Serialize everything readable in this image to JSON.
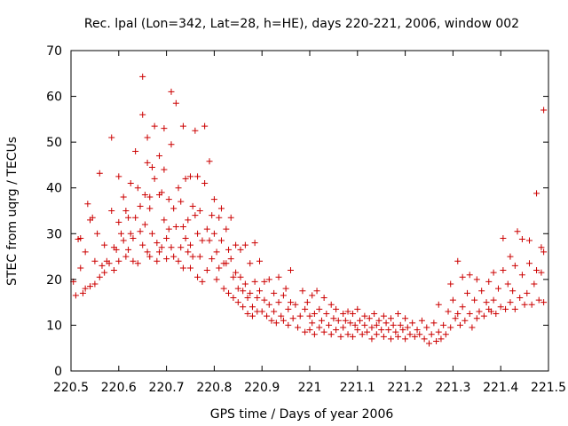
{
  "chart_data": {
    "type": "scatter",
    "title": "Rec. lpal (Lon=342, Lat=28, h=HE), days 220-221, 2006, window 002",
    "xlabel": "GPS time / Days of year 2006",
    "ylabel": "STEC from uqrg / TECUs",
    "xlim": [
      220.5,
      221.5
    ],
    "ylim": [
      0,
      70
    ],
    "xticks": [
      "220.5",
      "220.6",
      "220.7",
      "220.8",
      "220.9",
      "221",
      "221.1",
      "221.2",
      "221.3",
      "221.4",
      "221.5"
    ],
    "yticks": [
      "0",
      "10",
      "20",
      "30",
      "40",
      "50",
      "60",
      "70"
    ],
    "grid": false,
    "marker": "+",
    "color": "#cc0000",
    "points": [
      [
        220.505,
        19.5
      ],
      [
        220.51,
        16.5
      ],
      [
        220.515,
        28.8
      ],
      [
        220.52,
        29.0
      ],
      [
        220.52,
        22.5
      ],
      [
        220.525,
        17.0
      ],
      [
        220.53,
        18.0
      ],
      [
        220.53,
        26.0
      ],
      [
        220.535,
        36.5
      ],
      [
        220.54,
        33.0
      ],
      [
        220.54,
        18.5
      ],
      [
        220.545,
        33.5
      ],
      [
        220.55,
        24.0
      ],
      [
        220.55,
        19.0
      ],
      [
        220.555,
        30.0
      ],
      [
        220.56,
        43.2
      ],
      [
        220.56,
        20.5
      ],
      [
        220.565,
        23.0
      ],
      [
        220.57,
        21.5
      ],
      [
        220.57,
        27.5
      ],
      [
        220.575,
        24.0
      ],
      [
        220.58,
        23.5
      ],
      [
        220.585,
        51.0
      ],
      [
        220.585,
        35.0
      ],
      [
        220.59,
        27.0
      ],
      [
        220.59,
        22.0
      ],
      [
        220.595,
        26.5
      ],
      [
        220.6,
        42.5
      ],
      [
        220.6,
        32.5
      ],
      [
        220.6,
        24.0
      ],
      [
        220.605,
        30.0
      ],
      [
        220.61,
        38.0
      ],
      [
        220.61,
        28.5
      ],
      [
        220.615,
        35.0
      ],
      [
        220.615,
        25.0
      ],
      [
        220.62,
        33.5
      ],
      [
        220.62,
        26.5
      ],
      [
        220.625,
        41.0
      ],
      [
        220.625,
        30.0
      ],
      [
        220.63,
        29.0
      ],
      [
        220.63,
        24.0
      ],
      [
        220.635,
        48.0
      ],
      [
        220.635,
        33.5
      ],
      [
        220.64,
        40.0
      ],
      [
        220.64,
        23.5
      ],
      [
        220.645,
        36.0
      ],
      [
        220.645,
        30.5
      ],
      [
        220.65,
        64.3
      ],
      [
        220.65,
        56.0
      ],
      [
        220.65,
        27.5
      ],
      [
        220.655,
        38.5
      ],
      [
        220.655,
        32.0
      ],
      [
        220.66,
        51.0
      ],
      [
        220.66,
        45.5
      ],
      [
        220.66,
        26.0
      ],
      [
        220.665,
        38.0
      ],
      [
        220.665,
        35.5
      ],
      [
        220.665,
        25.0
      ],
      [
        220.67,
        44.5
      ],
      [
        220.67,
        30.0
      ],
      [
        220.675,
        53.5
      ],
      [
        220.675,
        42.0
      ],
      [
        220.68,
        28.0
      ],
      [
        220.68,
        24.0
      ],
      [
        220.685,
        38.5
      ],
      [
        220.685,
        47.0
      ],
      [
        220.685,
        26.0
      ],
      [
        220.69,
        39.0
      ],
      [
        220.69,
        27.0
      ],
      [
        220.695,
        53.0
      ],
      [
        220.695,
        44.0
      ],
      [
        220.695,
        33.0
      ],
      [
        220.7,
        29.0
      ],
      [
        220.7,
        24.5
      ],
      [
        220.705,
        37.5
      ],
      [
        220.705,
        31.0
      ],
      [
        220.71,
        61.0
      ],
      [
        220.71,
        49.5
      ],
      [
        220.71,
        27.0
      ],
      [
        220.715,
        35.5
      ],
      [
        220.715,
        25.0
      ],
      [
        220.72,
        58.5
      ],
      [
        220.72,
        31.5
      ],
      [
        220.725,
        40.0
      ],
      [
        220.725,
        24.0
      ],
      [
        220.73,
        37.0
      ],
      [
        220.73,
        27.0
      ],
      [
        220.735,
        53.5
      ],
      [
        220.735,
        31.5
      ],
      [
        220.735,
        22.5
      ],
      [
        220.74,
        42.0
      ],
      [
        220.74,
        29.0
      ],
      [
        220.745,
        33.0
      ],
      [
        220.745,
        26.0
      ],
      [
        220.75,
        42.5
      ],
      [
        220.75,
        27.5
      ],
      [
        220.75,
        22.5
      ],
      [
        220.755,
        36.0
      ],
      [
        220.755,
        25.0
      ],
      [
        220.76,
        52.5
      ],
      [
        220.76,
        34.0
      ],
      [
        220.765,
        42.5
      ],
      [
        220.765,
        30.0
      ],
      [
        220.765,
        20.5
      ],
      [
        220.77,
        35.0
      ],
      [
        220.77,
        25.0
      ],
      [
        220.775,
        28.5
      ],
      [
        220.775,
        19.5
      ],
      [
        220.78,
        53.5
      ],
      [
        220.78,
        41.0
      ],
      [
        220.785,
        31.0
      ],
      [
        220.785,
        22.0
      ],
      [
        220.79,
        45.8
      ],
      [
        220.79,
        28.5
      ],
      [
        220.795,
        34.0
      ],
      [
        220.795,
        24.5
      ],
      [
        220.8,
        37.5
      ],
      [
        220.8,
        30.0
      ],
      [
        220.805,
        26.0
      ],
      [
        220.805,
        20.0
      ],
      [
        220.81,
        33.5
      ],
      [
        220.81,
        22.5
      ],
      [
        220.815,
        35.5
      ],
      [
        220.815,
        28.5
      ],
      [
        220.82,
        23.5
      ],
      [
        220.82,
        18.0
      ],
      [
        220.825,
        31.0
      ],
      [
        220.825,
        23.5
      ],
      [
        220.83,
        26.5
      ],
      [
        220.83,
        17.0
      ],
      [
        220.835,
        33.5
      ],
      [
        220.835,
        24.5
      ],
      [
        220.84,
        20.5
      ],
      [
        220.84,
        16.0
      ],
      [
        220.845,
        27.5
      ],
      [
        220.845,
        21.5
      ],
      [
        220.85,
        18.0
      ],
      [
        220.85,
        15.0
      ],
      [
        220.855,
        26.5
      ],
      [
        220.855,
        20.5
      ],
      [
        220.86,
        17.5
      ],
      [
        220.86,
        14.0
      ],
      [
        220.865,
        27.5
      ],
      [
        220.865,
        19.0
      ],
      [
        220.87,
        16.0
      ],
      [
        220.87,
        12.5
      ],
      [
        220.875,
        23.5
      ],
      [
        220.875,
        17.0
      ],
      [
        220.88,
        14.0
      ],
      [
        220.88,
        12.0
      ],
      [
        220.885,
        28.0
      ],
      [
        220.885,
        19.5
      ],
      [
        220.89,
        16.0
      ],
      [
        220.89,
        13.0
      ],
      [
        220.895,
        24.0
      ],
      [
        220.895,
        17.5
      ],
      [
        220.9,
        13.0
      ],
      [
        220.905,
        19.5
      ],
      [
        220.905,
        15.5
      ],
      [
        220.91,
        12.0
      ],
      [
        220.915,
        20.0
      ],
      [
        220.915,
        14.5
      ],
      [
        220.92,
        11.0
      ],
      [
        220.925,
        17.0
      ],
      [
        220.925,
        13.0
      ],
      [
        220.93,
        10.5
      ],
      [
        220.935,
        20.5
      ],
      [
        220.935,
        15.0
      ],
      [
        220.94,
        12.0
      ],
      [
        220.945,
        16.5
      ],
      [
        220.945,
        11.0
      ],
      [
        220.95,
        18.0
      ],
      [
        220.955,
        13.5
      ],
      [
        220.955,
        10.0
      ],
      [
        220.96,
        22.0
      ],
      [
        220.96,
        15.0
      ],
      [
        220.965,
        11.5
      ],
      [
        220.97,
        14.5
      ],
      [
        220.975,
        9.5
      ],
      [
        220.98,
        12.0
      ],
      [
        220.985,
        17.5
      ],
      [
        220.99,
        13.5
      ],
      [
        220.99,
        8.5
      ],
      [
        220.995,
        15.0
      ],
      [
        221.0,
        12.0
      ],
      [
        221.0,
        9.0
      ],
      [
        221.005,
        16.5
      ],
      [
        221.005,
        10.5
      ],
      [
        221.01,
        12.5
      ],
      [
        221.01,
        8.0
      ],
      [
        221.015,
        17.5
      ],
      [
        221.02,
        13.5
      ],
      [
        221.02,
        9.5
      ],
      [
        221.025,
        11.0
      ],
      [
        221.03,
        16.0
      ],
      [
        221.03,
        8.5
      ],
      [
        221.035,
        12.5
      ],
      [
        221.04,
        10.0
      ],
      [
        221.045,
        14.5
      ],
      [
        221.045,
        8.0
      ],
      [
        221.05,
        11.5
      ],
      [
        221.055,
        13.5
      ],
      [
        221.055,
        9.0
      ],
      [
        221.06,
        11.0
      ],
      [
        221.065,
        7.5
      ],
      [
        221.07,
        12.5
      ],
      [
        221.07,
        9.5
      ],
      [
        221.075,
        11.0
      ],
      [
        221.08,
        13.0
      ],
      [
        221.08,
        8.0
      ],
      [
        221.085,
        10.5
      ],
      [
        221.09,
        12.5
      ],
      [
        221.09,
        7.5
      ],
      [
        221.095,
        10.0
      ],
      [
        221.1,
        13.5
      ],
      [
        221.1,
        9.0
      ],
      [
        221.105,
        11.0
      ],
      [
        221.11,
        8.0
      ],
      [
        221.115,
        12.0
      ],
      [
        221.115,
        10.0
      ],
      [
        221.12,
        8.5
      ],
      [
        221.125,
        11.5
      ],
      [
        221.13,
        9.5
      ],
      [
        221.13,
        7.0
      ],
      [
        221.135,
        12.5
      ],
      [
        221.14,
        10.0
      ],
      [
        221.14,
        8.0
      ],
      [
        221.145,
        11.0
      ],
      [
        221.15,
        9.0
      ],
      [
        221.155,
        12.0
      ],
      [
        221.155,
        7.5
      ],
      [
        221.16,
        10.5
      ],
      [
        221.165,
        9.0
      ],
      [
        221.17,
        11.5
      ],
      [
        221.17,
        7.0
      ],
      [
        221.175,
        10.0
      ],
      [
        221.18,
        8.5
      ],
      [
        221.185,
        12.5
      ],
      [
        221.185,
        7.5
      ],
      [
        221.19,
        10.0
      ],
      [
        221.195,
        9.0
      ],
      [
        221.2,
        11.5
      ],
      [
        221.2,
        7.0
      ],
      [
        221.205,
        9.5
      ],
      [
        221.21,
        8.0
      ],
      [
        221.215,
        10.5
      ],
      [
        221.22,
        7.5
      ],
      [
        221.225,
        9.0
      ],
      [
        221.23,
        8.0
      ],
      [
        221.235,
        11.0
      ],
      [
        221.24,
        7.0
      ],
      [
        221.245,
        9.5
      ],
      [
        221.25,
        6.0
      ],
      [
        221.255,
        8.0
      ],
      [
        221.26,
        10.5
      ],
      [
        221.265,
        6.5
      ],
      [
        221.27,
        8.5
      ],
      [
        221.27,
        14.5
      ],
      [
        221.275,
        7.0
      ],
      [
        221.28,
        10.0
      ],
      [
        221.285,
        8.0
      ],
      [
        221.29,
        13.0
      ],
      [
        221.295,
        19.0
      ],
      [
        221.295,
        9.5
      ],
      [
        221.3,
        15.5
      ],
      [
        221.305,
        11.5
      ],
      [
        221.31,
        24.0
      ],
      [
        221.31,
        12.5
      ],
      [
        221.315,
        10.0
      ],
      [
        221.32,
        20.5
      ],
      [
        221.32,
        14.0
      ],
      [
        221.325,
        11.0
      ],
      [
        221.33,
        17.0
      ],
      [
        221.335,
        21.0
      ],
      [
        221.335,
        12.5
      ],
      [
        221.34,
        9.5
      ],
      [
        221.345,
        15.5
      ],
      [
        221.35,
        20.0
      ],
      [
        221.35,
        11.5
      ],
      [
        221.355,
        13.0
      ],
      [
        221.36,
        17.5
      ],
      [
        221.365,
        12.0
      ],
      [
        221.37,
        15.0
      ],
      [
        221.375,
        19.5
      ],
      [
        221.375,
        13.5
      ],
      [
        221.38,
        13.0
      ],
      [
        221.385,
        21.5
      ],
      [
        221.385,
        15.5
      ],
      [
        221.39,
        12.5
      ],
      [
        221.395,
        18.0
      ],
      [
        221.4,
        14.0
      ],
      [
        221.405,
        29.0
      ],
      [
        221.405,
        22.0
      ],
      [
        221.41,
        13.5
      ],
      [
        221.415,
        19.0
      ],
      [
        221.42,
        25.0
      ],
      [
        221.42,
        15.0
      ],
      [
        221.425,
        17.5
      ],
      [
        221.43,
        23.0
      ],
      [
        221.43,
        13.5
      ],
      [
        221.435,
        30.5
      ],
      [
        221.44,
        16.0
      ],
      [
        221.445,
        28.8
      ],
      [
        221.445,
        21.0
      ],
      [
        221.45,
        14.5
      ],
      [
        221.455,
        17.0
      ],
      [
        221.46,
        28.5
      ],
      [
        221.46,
        23.5
      ],
      [
        221.465,
        14.5
      ],
      [
        221.47,
        19.0
      ],
      [
        221.475,
        38.8
      ],
      [
        221.475,
        22.0
      ],
      [
        221.48,
        15.5
      ],
      [
        221.485,
        27.0
      ],
      [
        221.485,
        21.5
      ],
      [
        221.49,
        57.0
      ],
      [
        221.49,
        26.0
      ],
      [
        221.49,
        15.0
      ]
    ]
  }
}
